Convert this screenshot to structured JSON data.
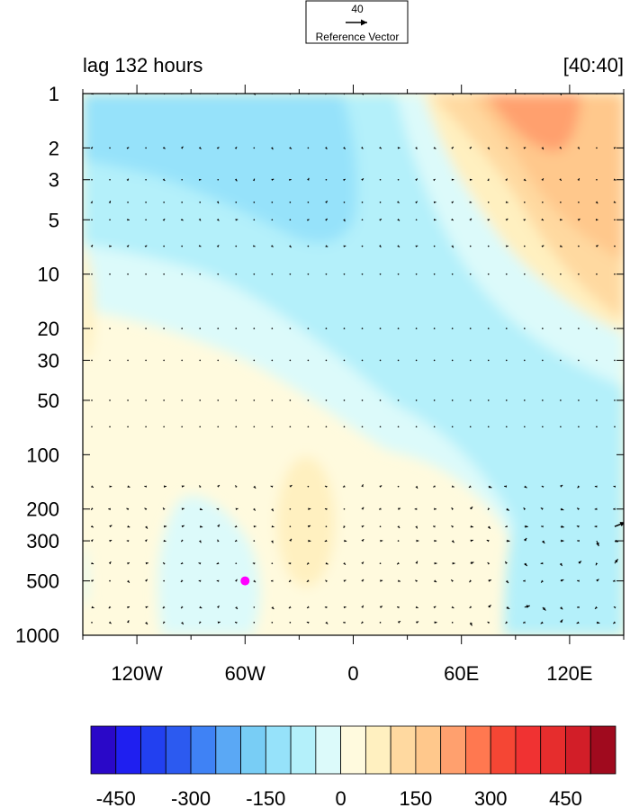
{
  "chart_data": {
    "type": "heatmap",
    "title_left": "lag 132 hours",
    "title_right": "[40:40]",
    "reference_vector": {
      "value": "40",
      "label": "Reference Vector"
    },
    "x": {
      "range": [
        -150,
        150
      ],
      "ticks": [
        -120,
        -60,
        0,
        60,
        120
      ],
      "tick_labels": [
        "120W",
        "60W",
        "0",
        "60E",
        "120E"
      ]
    },
    "y": {
      "scale": "log",
      "reversed": true,
      "range": [
        1,
        1000
      ],
      "ticks": [
        1,
        2,
        3,
        5,
        10,
        20,
        30,
        50,
        100,
        200,
        300,
        500,
        1000
      ],
      "tick_labels": [
        "1",
        "2",
        "3",
        "5",
        "10",
        "20",
        "30",
        "50",
        "100",
        "200",
        "300",
        "500",
        "1000"
      ]
    },
    "colorbar": {
      "levels": [
        -500,
        -450,
        -400,
        -350,
        -300,
        -250,
        -200,
        -150,
        -100,
        -50,
        0,
        50,
        100,
        150,
        200,
        250,
        300,
        350,
        400,
        450,
        500
      ],
      "colors": [
        "#2a08c8",
        "#1f1ff0",
        "#2240f0",
        "#2c5af0",
        "#3f82f5",
        "#5aa8f5",
        "#78cdf5",
        "#96e2fa",
        "#b4f0fa",
        "#dcfafa",
        "#fffade",
        "#fff0c0",
        "#ffd9a0",
        "#ffc88c",
        "#ffa06e",
        "#ff7850",
        "#f54634",
        "#f03232",
        "#e62d2d",
        "#d21e28",
        "#a00a1e"
      ],
      "tick_values": [
        -450,
        -300,
        -150,
        0,
        150,
        300,
        450
      ],
      "tick_labels": [
        "-450",
        "-300",
        "-150",
        "0",
        "150",
        "300",
        "450"
      ]
    },
    "contour_regions": [
      {
        "level": "-100 to -50",
        "color": "#b4f0fa",
        "description": "upper-left and central-upper band"
      },
      {
        "level": "-150 to -100",
        "color": "#96e2fa",
        "description": "upper-left core near 1-5 hPa"
      },
      {
        "level": "150 to 200",
        "color": "#ffc88c",
        "description": "upper-right core"
      },
      {
        "level": "200 to 250",
        "color": "#ffa06e",
        "description": "upper-right max near 1-2 hPa, 90E-120E"
      },
      {
        "level": "50 to 100",
        "color": "#fff0c0",
        "description": "mid-level center near 30W, 150-500 hPa"
      }
    ],
    "marker": {
      "lon": -60,
      "p": 500,
      "color": "#ff00ff"
    },
    "vector_grid": {
      "lon": [
        -145,
        -135,
        -125,
        -115,
        -105,
        -95,
        -85,
        -75,
        -65,
        -55,
        -45,
        -35,
        -25,
        -15,
        -5,
        5,
        15,
        25,
        35,
        45,
        55,
        65,
        75,
        85,
        95,
        105,
        115,
        125,
        135,
        145
      ],
      "p": [
        1,
        2,
        3,
        4,
        5,
        7,
        10,
        20,
        30,
        50,
        70,
        150,
        200,
        250,
        300,
        400,
        500,
        700,
        850
      ]
    },
    "notable_vectors": [
      {
        "lon": 100,
        "p": 850,
        "u": 10,
        "v": 14
      },
      {
        "lon": 110,
        "p": 850,
        "u": 4,
        "v": -8
      },
      {
        "lon": 120,
        "p": 850,
        "u": 6,
        "v": 8
      },
      {
        "lon": 90,
        "p": 850,
        "u": -6,
        "v": 8
      },
      {
        "lon": 95,
        "p": 700,
        "u": 10,
        "v": 3
      },
      {
        "lon": 105,
        "p": 700,
        "u": 6,
        "v": -6
      },
      {
        "lon": 145,
        "p": 250,
        "u": 20,
        "v": 8
      },
      {
        "lon": 140,
        "p": 300,
        "u": 22,
        "v": 6
      },
      {
        "lon": 135,
        "p": 300,
        "u": 4,
        "v": -10
      },
      {
        "lon": 145,
        "p": 400,
        "u": 6,
        "v": 8
      }
    ]
  }
}
